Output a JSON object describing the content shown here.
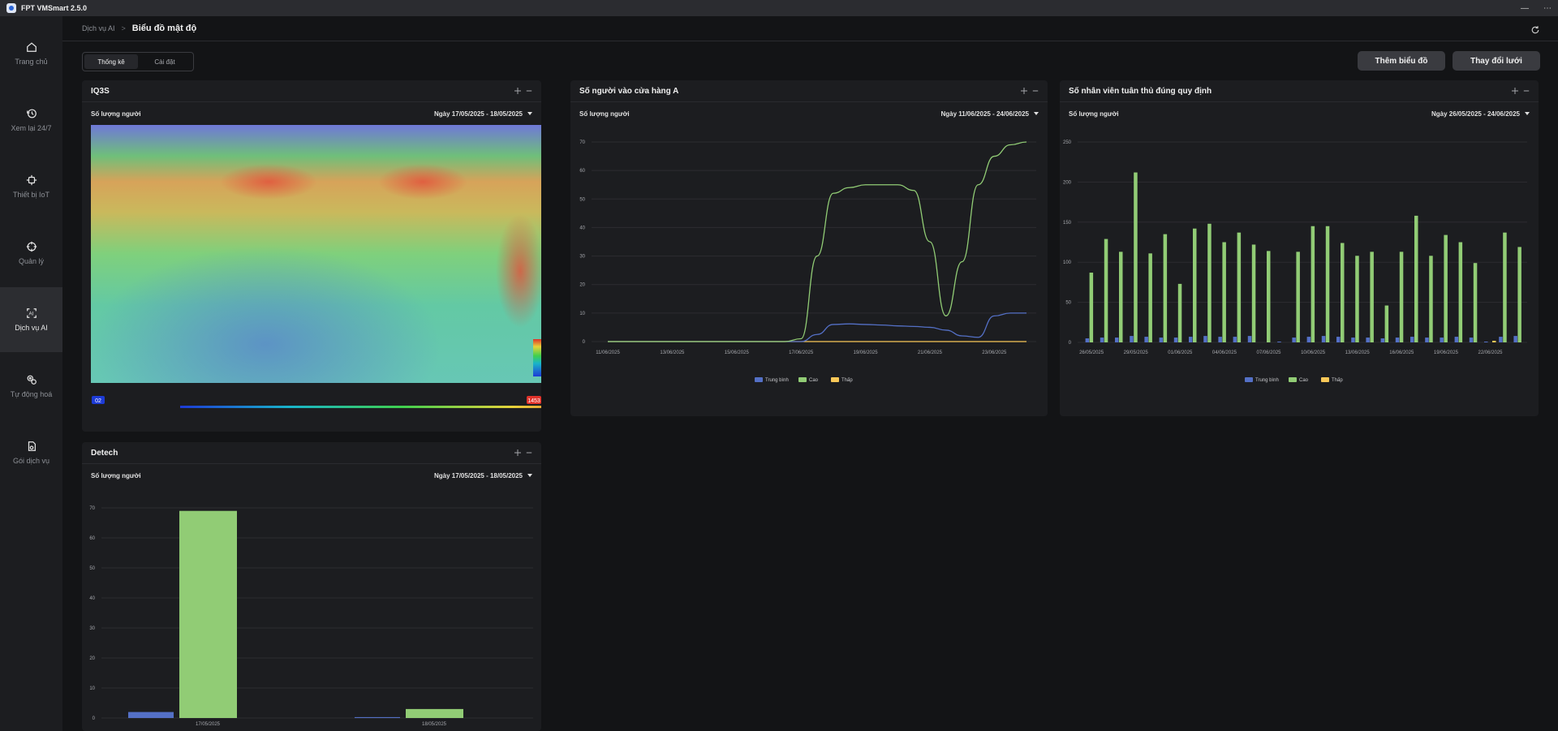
{
  "app": {
    "title": "FPT VMSmart 2.5.0",
    "min_label": "—",
    "more_label": "⋯"
  },
  "sidebar": {
    "items": [
      {
        "label": "Trang chủ",
        "icon": "home-icon"
      },
      {
        "label": "Xem lại 24/7",
        "icon": "history-icon"
      },
      {
        "label": "Thiết bị IoT",
        "icon": "iot-device-icon"
      },
      {
        "label": "Quản lý",
        "icon": "crosshair-icon"
      },
      {
        "label": "Dịch vụ AI",
        "icon": "ai-icon"
      },
      {
        "label": "Tự động hoá",
        "icon": "automation-icon"
      },
      {
        "label": "Gói dịch vụ",
        "icon": "package-icon"
      }
    ],
    "active_index": 4
  },
  "breadcrumb": {
    "parent": "Dịch vụ AI",
    "separator": ">",
    "current": "Biểu đồ mật độ"
  },
  "tabs": [
    {
      "label": "Thống kê",
      "active": true
    },
    {
      "label": "Cài đặt",
      "active": false
    }
  ],
  "buttons": {
    "add_chart": "Thêm biểu đồ",
    "change_grid": "Thay đổi lưới"
  },
  "panels": {
    "heatmap": {
      "title": "IQ3S",
      "sub_label": "Số lượng người",
      "date_range": "Ngày 17/05/2025 - 18/05/2025",
      "scale_min": "02",
      "scale_max": "1453"
    },
    "store_a": {
      "title": "Số người vào cửa hàng A",
      "sub_label": "Số lượng người",
      "date_range": "Ngày 11/06/2025 - 24/06/2025"
    },
    "staff": {
      "title": "Số nhân viên tuân thủ đúng quy định",
      "sub_label": "Số lượng người",
      "date_range": "Ngày 26/05/2025 - 24/06/2025"
    },
    "detech": {
      "title": "Detech",
      "sub_label": "Số lượng người",
      "date_range": "Ngày 17/05/2025 - 18/05/2025"
    }
  },
  "colors": {
    "avg": "#5470c6",
    "high": "#91cc75",
    "low": "#fac858"
  },
  "chart_data": [
    {
      "id": "store_a",
      "type": "line",
      "title": "Số người vào cửa hàng A",
      "ylabel": "Số lượng người",
      "ylim": [
        0,
        70
      ],
      "yticks": [
        0,
        10,
        20,
        30,
        40,
        50,
        60,
        70
      ],
      "x_ticks": [
        "11/06/2025",
        "13/06/2025",
        "15/06/2025",
        "17/06/2025",
        "19/06/2025",
        "21/06/2025",
        "23/06/2025"
      ],
      "x": [
        0,
        0.5,
        1,
        1.5,
        2,
        2.5,
        3,
        3.5,
        4,
        4.5,
        5,
        5.5,
        6,
        6.5,
        7,
        7.5,
        8,
        8.5,
        9,
        9.5,
        10,
        10.5,
        11,
        11.5,
        12,
        12.5,
        13
      ],
      "series": [
        {
          "name": "Trung bình",
          "values": [
            0,
            0,
            0,
            0,
            0,
            0,
            0,
            0,
            0,
            0,
            0,
            0,
            0,
            2.5,
            6,
            6.2,
            6,
            5.8,
            5.5,
            5.3,
            5,
            4,
            2,
            1.5,
            9,
            10,
            10
          ]
        },
        {
          "name": "Cao",
          "values": [
            0,
            0,
            0,
            0,
            0,
            0,
            0,
            0,
            0,
            0,
            0,
            0,
            1,
            30,
            52,
            54,
            55,
            55,
            55,
            53,
            35,
            9,
            28,
            55,
            65,
            69,
            70
          ]
        },
        {
          "name": "Thấp",
          "values": [
            0,
            0,
            0,
            0,
            0,
            0,
            0,
            0,
            0,
            0,
            0,
            0,
            0,
            0,
            0,
            0,
            0,
            0,
            0,
            0,
            0,
            0,
            0,
            0,
            0,
            0,
            0
          ]
        }
      ],
      "legend": [
        "Trung bình",
        "Cao",
        "Thấp"
      ]
    },
    {
      "id": "staff",
      "type": "bar",
      "title": "Số nhân viên tuân thủ đúng quy định",
      "ylabel": "Số lượng người",
      "ylim": [
        0,
        250
      ],
      "yticks": [
        0,
        50,
        100,
        150,
        200,
        250
      ],
      "x_ticks": [
        "26/05/2025",
        "29/05/2025",
        "01/06/2025",
        "04/06/2025",
        "07/06/2025",
        "10/06/2025",
        "13/06/2025",
        "16/06/2025",
        "19/06/2025",
        "22/06/2025"
      ],
      "x_tick_every": 3,
      "categories": [
        "26/05",
        "27/05",
        "28/05",
        "29/05",
        "30/05",
        "31/05",
        "01/06",
        "02/06",
        "03/06",
        "04/06",
        "05/06",
        "06/06",
        "07/06",
        "08/06",
        "09/06",
        "10/06",
        "11/06",
        "12/06",
        "13/06",
        "14/06",
        "15/06",
        "16/06",
        "17/06",
        "18/06",
        "19/06",
        "20/06",
        "21/06",
        "22/06",
        "23/06",
        "24/06"
      ],
      "series": [
        {
          "name": "Trung bình",
          "values": [
            5,
            6,
            6,
            8,
            7,
            6,
            6,
            7,
            8,
            7,
            7,
            8,
            0,
            1,
            6,
            7,
            8,
            7,
            6,
            6,
            5,
            6,
            7,
            6,
            6,
            7,
            6,
            1,
            7,
            8
          ]
        },
        {
          "name": "Cao",
          "values": [
            87,
            129,
            113,
            212,
            111,
            135,
            73,
            142,
            148,
            125,
            137,
            122,
            114,
            0,
            113,
            145,
            145,
            124,
            108,
            113,
            46,
            113,
            158,
            108,
            134,
            125,
            99,
            0,
            137,
            119
          ]
        },
        {
          "name": "Thấp",
          "values": [
            0,
            0,
            0,
            0,
            0,
            0,
            0,
            0,
            0,
            0,
            0,
            0,
            0,
            0,
            0,
            0,
            0,
            0,
            0,
            0,
            0,
            0,
            0,
            0,
            0,
            0,
            0,
            2,
            0,
            0
          ]
        }
      ],
      "legend": [
        "Trung bình",
        "Cao",
        "Thấp"
      ]
    },
    {
      "id": "detech",
      "type": "bar",
      "title": "Detech",
      "ylabel": "Số lượng người",
      "ylim": [
        0,
        70
      ],
      "yticks": [
        0,
        10,
        20,
        30,
        40,
        50,
        60,
        70
      ],
      "categories": [
        "17/05/2025",
        "18/05/2025"
      ],
      "series": [
        {
          "name": "Trung bình",
          "values": [
            2,
            0.3
          ]
        },
        {
          "name": "Cao",
          "values": [
            69,
            3
          ]
        },
        {
          "name": "Thấp",
          "values": [
            0,
            0
          ]
        }
      ]
    }
  ]
}
